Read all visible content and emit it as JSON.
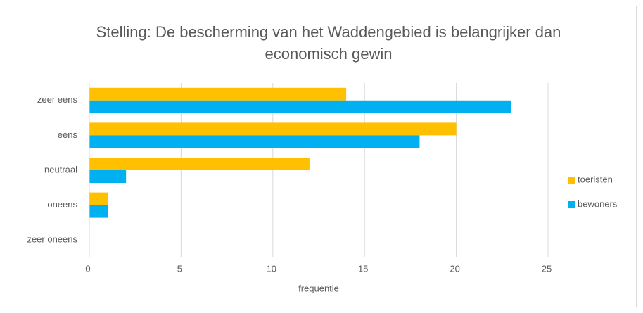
{
  "chart_data": {
    "type": "barh",
    "title": "Stelling: De bescherming van het Waddengebied is belangrijker dan economisch gewin",
    "categories": [
      "zeer eens",
      "eens",
      "neutraal",
      "oneens",
      "zeer oneens"
    ],
    "series": [
      {
        "name": "toeristen",
        "color": "#ffc000",
        "values": [
          14,
          20,
          12,
          1,
          0
        ]
      },
      {
        "name": "bewoners",
        "color": "#00b0f0",
        "values": [
          23,
          18,
          2,
          1,
          0
        ]
      }
    ],
    "xlabel": "frequentie",
    "xlim": [
      0,
      25
    ],
    "xticks": [
      0,
      5,
      10,
      15,
      20,
      25
    ],
    "grid": true,
    "legend": "right"
  }
}
